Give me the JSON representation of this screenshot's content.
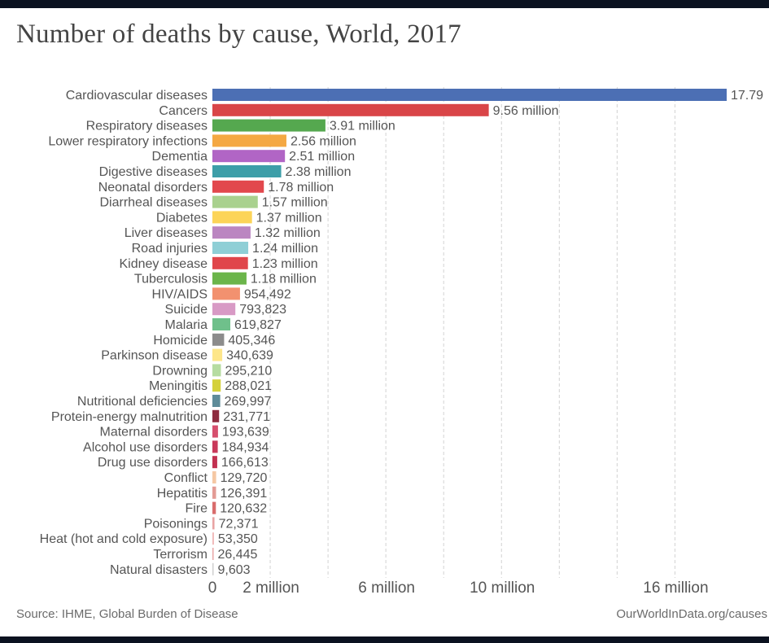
{
  "header": {
    "title": "Number of deaths by cause, World, 2017"
  },
  "footer": {
    "source": "Source: IHME, Global Burden of Disease",
    "credit": "OurWorldInData.org/causes"
  },
  "chart_data": {
    "type": "bar",
    "orientation": "horizontal",
    "title": "Number of deaths by cause, World, 2017",
    "xlabel": "",
    "ylabel": "",
    "xlim": [
      0,
      17790000
    ],
    "grid": true,
    "x_ticks": [
      {
        "value": 0,
        "label": "0"
      },
      {
        "value": 2000000,
        "label": "2 million"
      },
      {
        "value": 6000000,
        "label": "6 million"
      },
      {
        "value": 10000000,
        "label": "10 million"
      },
      {
        "value": 16000000,
        "label": "16 million"
      }
    ],
    "gridlines": [
      2000000,
      4000000,
      6000000,
      8000000,
      10000000,
      12000000,
      14000000,
      16000000
    ],
    "bars": [
      {
        "category": "Cardiovascular diseases",
        "value": 17790000,
        "label": "17.79",
        "color": "#4c6fb4"
      },
      {
        "category": "Cancers",
        "value": 9560000,
        "label": "9.56 million",
        "color": "#d94548"
      },
      {
        "category": "Respiratory diseases",
        "value": 3910000,
        "label": "3.91 million",
        "color": "#55a84f"
      },
      {
        "category": "Lower respiratory infections",
        "value": 2560000,
        "label": "2.56 million",
        "color": "#f4a843"
      },
      {
        "category": "Dementia",
        "value": 2510000,
        "label": "2.51 million",
        "color": "#b165c5"
      },
      {
        "category": "Digestive diseases",
        "value": 2380000,
        "label": "2.38 million",
        "color": "#3d9ea8"
      },
      {
        "category": "Neonatal disorders",
        "value": 1780000,
        "label": "1.78 million",
        "color": "#e2484d"
      },
      {
        "category": "Diarrheal diseases",
        "value": 1570000,
        "label": "1.57 million",
        "color": "#a9d18e"
      },
      {
        "category": "Diabetes",
        "value": 1370000,
        "label": "1.37 million",
        "color": "#fcd458"
      },
      {
        "category": "Liver diseases",
        "value": 1320000,
        "label": "1.32 million",
        "color": "#bb86c1"
      },
      {
        "category": "Road injuries",
        "value": 1240000,
        "label": "1.24 million",
        "color": "#8fcfd6"
      },
      {
        "category": "Kidney disease",
        "value": 1230000,
        "label": "1.23 million",
        "color": "#e0464b"
      },
      {
        "category": "Tuberculosis",
        "value": 1180000,
        "label": "1.18 million",
        "color": "#6bb54a"
      },
      {
        "category": "HIV/AIDS",
        "value": 954492,
        "label": "954,492",
        "color": "#f2916f"
      },
      {
        "category": "Suicide",
        "value": 793823,
        "label": "793,823",
        "color": "#d89ac5"
      },
      {
        "category": "Malaria",
        "value": 619827,
        "label": "619,827",
        "color": "#6fc08b"
      },
      {
        "category": "Homicide",
        "value": 405346,
        "label": "405,346",
        "color": "#8c8c8c"
      },
      {
        "category": "Parkinson disease",
        "value": 340639,
        "label": "340,639",
        "color": "#fde68a"
      },
      {
        "category": "Drowning",
        "value": 295210,
        "label": "295,210",
        "color": "#b6dca1"
      },
      {
        "category": "Meningitis",
        "value": 288021,
        "label": "288,021",
        "color": "#d4d13b"
      },
      {
        "category": "Nutritional deficiencies",
        "value": 269997,
        "label": "269,997",
        "color": "#5f8c99"
      },
      {
        "category": "Protein-energy malnutrition",
        "value": 231771,
        "label": "231,771",
        "color": "#8e2c3f"
      },
      {
        "category": "Maternal disorders",
        "value": 193639,
        "label": "193,639",
        "color": "#d64f6e"
      },
      {
        "category": "Alcohol use disorders",
        "value": 184934,
        "label": "184,934",
        "color": "#c9395a"
      },
      {
        "category": "Drug use disorders",
        "value": 166613,
        "label": "166,613",
        "color": "#c23050"
      },
      {
        "category": "Conflict",
        "value": 129720,
        "label": "129,720",
        "color": "#f5c8a4"
      },
      {
        "category": "Hepatitis",
        "value": 126391,
        "label": "126,391",
        "color": "#e39b95"
      },
      {
        "category": "Fire",
        "value": 120632,
        "label": "120,632",
        "color": "#d96c6c"
      },
      {
        "category": "Poisonings",
        "value": 72371,
        "label": "72,371",
        "color": "#e8a3a3"
      },
      {
        "category": "Heat (hot and cold exposure)",
        "value": 53350,
        "label": "53,350",
        "color": "#f0b8b8"
      },
      {
        "category": "Terrorism",
        "value": 26445,
        "label": "26,445",
        "color": "#e9a7a7"
      },
      {
        "category": "Natural disasters",
        "value": 9603,
        "label": "9,603",
        "color": "#cfcfcf"
      }
    ]
  }
}
